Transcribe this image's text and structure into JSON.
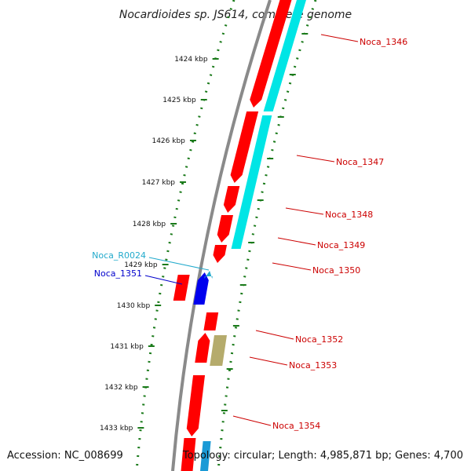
{
  "title": "Nocardioides sp. JS614, complete genome",
  "accession": "Accession: NC_008699",
  "topology": "Topology: circular; Length: 4,985,871 bp; Genes: 4,700",
  "colors": {
    "backbone": "#8a8a8a",
    "tick": "#1a7a1a",
    "cds": "#ff0000",
    "rna": "#00e5e5",
    "rrna": "#1a9ad6",
    "blue_gene": "#0000ee",
    "khaki_gene": "#b5ab6c",
    "label_red": "#cc0000",
    "label_cyan": "#22aacc",
    "label_blue": "#0000cc"
  },
  "kbp_labels": [
    "1424 kbp",
    "1425 kbp",
    "1426 kbp",
    "1427 kbp",
    "1428 kbp",
    "1429 kbp",
    "1430 kbp",
    "1431 kbp",
    "1432 kbp",
    "1433 kbp"
  ],
  "right_labels": [
    {
      "text": "Noca_1346",
      "color": "#cc0000"
    },
    {
      "text": "Noca_1347",
      "color": "#cc0000"
    },
    {
      "text": "Noca_1348",
      "color": "#cc0000"
    },
    {
      "text": "Noca_1349",
      "color": "#cc0000"
    },
    {
      "text": "Noca_1350",
      "color": "#cc0000"
    },
    {
      "text": "Noca_1352",
      "color": "#cc0000"
    },
    {
      "text": "Noca_1353",
      "color": "#cc0000"
    },
    {
      "text": "Noca_1354",
      "color": "#cc0000"
    }
  ],
  "left_labels": [
    {
      "text": "Noca_R0024",
      "color": "#22aacc"
    },
    {
      "text": "Noca_1351",
      "color": "#0000cc"
    }
  ]
}
